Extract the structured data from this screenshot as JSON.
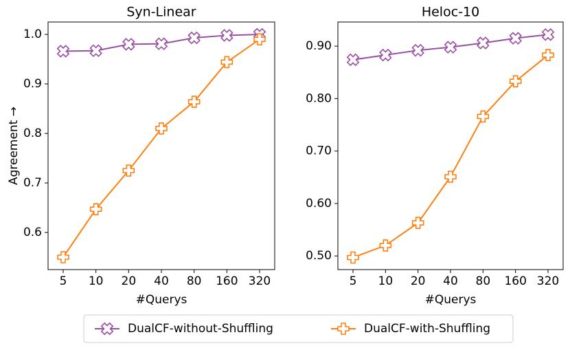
{
  "chart_data": [
    {
      "type": "line",
      "title": "Syn-Linear",
      "xlabel": "#Querys",
      "ylabel": "Agreement →",
      "categories": [
        "5",
        "10",
        "20",
        "40",
        "80",
        "160",
        "320"
      ],
      "series": [
        {
          "name": "DualCF-without-Shuffling",
          "color": "#984ea3",
          "marker": "x",
          "values": [
            0.966,
            0.967,
            0.98,
            0.981,
            0.993,
            0.998,
            1.0
          ]
        },
        {
          "name": "DualCF-with-Shuffling",
          "color": "#ff7f0e",
          "marker": "plus",
          "values": [
            0.55,
            0.647,
            0.725,
            0.81,
            0.864,
            0.944,
            0.99
          ]
        }
      ],
      "ylim": [
        0.525,
        1.025
      ],
      "yticks": [
        0.6,
        0.7,
        0.8,
        0.9,
        {
          "value": 1.0,
          "label": "1.0"
        }
      ]
    },
    {
      "type": "line",
      "title": "Heloc-10",
      "xlabel": "#Querys",
      "categories": [
        "5",
        "10",
        "20",
        "40",
        "80",
        "160",
        "320"
      ],
      "series": [
        {
          "color": "#984ea3",
          "marker": "x",
          "values": [
            0.874,
            0.883,
            0.892,
            0.898,
            0.906,
            0.915,
            0.922
          ]
        },
        {
          "color": "#ff7f0e",
          "marker": "plus",
          "values": [
            0.497,
            0.52,
            0.563,
            0.651,
            0.766,
            0.833,
            0.883
          ]
        }
      ],
      "ylim": [
        0.474,
        0.946
      ],
      "yticks": [
        {
          "value": 0.5,
          "label": "0.50"
        },
        {
          "value": 0.6,
          "label": "0.60"
        },
        {
          "value": 0.7,
          "label": "0.70"
        },
        {
          "value": 0.8,
          "label": "0.80"
        },
        {
          "value": 0.9,
          "label": "0.90"
        }
      ]
    }
  ]
}
